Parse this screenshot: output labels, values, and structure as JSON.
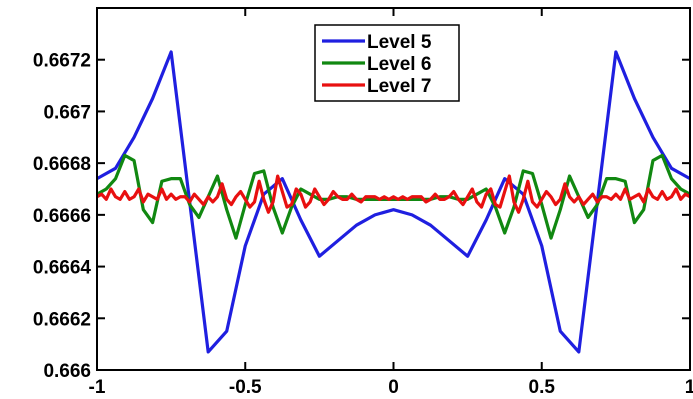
{
  "chart_data": {
    "type": "line",
    "xlim": [
      -1,
      1
    ],
    "ylim": [
      0.666,
      0.6674
    ],
    "x_ticks": [
      -1,
      -0.5,
      0,
      0.5,
      1
    ],
    "x_tick_labels": [
      "-1",
      "-0.5",
      "0",
      "0.5",
      "1"
    ],
    "y_ticks": [
      0.666,
      0.6662,
      0.6664,
      0.6666,
      0.6668,
      0.667,
      0.6672
    ],
    "y_tick_labels": [
      "0.666",
      "0.6662",
      "0.6664",
      "0.6666",
      "0.6668",
      "0.667",
      "0.6672"
    ],
    "grid": false,
    "legend_position": "top-center",
    "title": "",
    "xlabel": "",
    "ylabel": "",
    "series": [
      {
        "name": "Level 5",
        "color": "#1f1fe0",
        "x": [
          -1,
          -0.9375,
          -0.875,
          -0.8125,
          -0.75,
          -0.6875,
          -0.625,
          -0.5625,
          -0.5,
          -0.4375,
          -0.375,
          -0.3125,
          -0.25,
          -0.1875,
          -0.125,
          -0.0625,
          0,
          0.0625,
          0.125,
          0.1875,
          0.25,
          0.3125,
          0.375,
          0.4375,
          0.5,
          0.5625,
          0.625,
          0.6875,
          0.75,
          0.8125,
          0.875,
          0.9375,
          1
        ],
        "y": [
          0.66674,
          0.66678,
          0.6669,
          0.66705,
          0.66723,
          0.66665,
          0.66607,
          0.66615,
          0.66648,
          0.66668,
          0.66674,
          0.66658,
          0.66644,
          0.6665,
          0.66656,
          0.6666,
          0.66662,
          0.6666,
          0.66656,
          0.6665,
          0.66644,
          0.66658,
          0.66674,
          0.66668,
          0.66648,
          0.66615,
          0.66607,
          0.66665,
          0.66723,
          0.66705,
          0.6669,
          0.66678,
          0.66674
        ]
      },
      {
        "name": "Level 6",
        "color": "#118811",
        "x": [
          -1,
          -0.96875,
          -0.9375,
          -0.90625,
          -0.875,
          -0.84375,
          -0.8125,
          -0.78125,
          -0.75,
          -0.71875,
          -0.6875,
          -0.65625,
          -0.625,
          -0.59375,
          -0.5625,
          -0.53125,
          -0.5,
          -0.46875,
          -0.4375,
          -0.40625,
          -0.375,
          -0.34375,
          -0.3125,
          -0.28125,
          -0.25,
          -0.21875,
          -0.1875,
          -0.15625,
          -0.125,
          -0.09375,
          -0.0625,
          -0.03125,
          0,
          0.03125,
          0.0625,
          0.09375,
          0.125,
          0.15625,
          0.1875,
          0.21875,
          0.25,
          0.28125,
          0.3125,
          0.34375,
          0.375,
          0.40625,
          0.4375,
          0.46875,
          0.5,
          0.53125,
          0.5625,
          0.59375,
          0.625,
          0.65625,
          0.6875,
          0.71875,
          0.75,
          0.78125,
          0.8125,
          0.84375,
          0.875,
          0.90625,
          0.9375,
          0.96875,
          1
        ],
        "y": [
          0.66668,
          0.6667,
          0.66674,
          0.66683,
          0.66681,
          0.66662,
          0.66657,
          0.66673,
          0.66674,
          0.66674,
          0.66664,
          0.66659,
          0.66667,
          0.66675,
          0.66662,
          0.66651,
          0.66664,
          0.66676,
          0.66677,
          0.66663,
          0.66653,
          0.66663,
          0.6667,
          0.66668,
          0.66666,
          0.66666,
          0.66667,
          0.66667,
          0.66666,
          0.66666,
          0.66666,
          0.66666,
          0.66666,
          0.66666,
          0.66666,
          0.66666,
          0.66666,
          0.66667,
          0.66667,
          0.66666,
          0.66666,
          0.66668,
          0.6667,
          0.66663,
          0.66653,
          0.66663,
          0.66677,
          0.66676,
          0.66664,
          0.66651,
          0.66662,
          0.66675,
          0.66667,
          0.66659,
          0.66664,
          0.66674,
          0.66674,
          0.66673,
          0.66657,
          0.66662,
          0.66681,
          0.66683,
          0.66674,
          0.6667,
          0.66668
        ]
      },
      {
        "name": "Level 7",
        "color": "#e81010",
        "x": [
          -1,
          -0.984375,
          -0.96875,
          -0.953125,
          -0.9375,
          -0.921875,
          -0.90625,
          -0.890625,
          -0.875,
          -0.859375,
          -0.84375,
          -0.828125,
          -0.8125,
          -0.796875,
          -0.78125,
          -0.765625,
          -0.75,
          -0.734375,
          -0.71875,
          -0.703125,
          -0.6875,
          -0.671875,
          -0.65625,
          -0.640625,
          -0.625,
          -0.609375,
          -0.59375,
          -0.578125,
          -0.5625,
          -0.546875,
          -0.53125,
          -0.515625,
          -0.5,
          -0.484375,
          -0.46875,
          -0.453125,
          -0.4375,
          -0.421875,
          -0.40625,
          -0.390625,
          -0.375,
          -0.359375,
          -0.34375,
          -0.328125,
          -0.3125,
          -0.296875,
          -0.28125,
          -0.265625,
          -0.25,
          -0.234375,
          -0.21875,
          -0.203125,
          -0.1875,
          -0.171875,
          -0.15625,
          -0.140625,
          -0.125,
          -0.109375,
          -0.09375,
          -0.078125,
          -0.0625,
          -0.046875,
          -0.03125,
          -0.015625,
          0,
          0.015625,
          0.03125,
          0.046875,
          0.0625,
          0.078125,
          0.09375,
          0.109375,
          0.125,
          0.140625,
          0.15625,
          0.171875,
          0.1875,
          0.203125,
          0.21875,
          0.234375,
          0.25,
          0.265625,
          0.28125,
          0.296875,
          0.3125,
          0.328125,
          0.34375,
          0.359375,
          0.375,
          0.390625,
          0.40625,
          0.421875,
          0.4375,
          0.453125,
          0.46875,
          0.484375,
          0.5,
          0.515625,
          0.53125,
          0.546875,
          0.5625,
          0.578125,
          0.59375,
          0.609375,
          0.625,
          0.640625,
          0.65625,
          0.671875,
          0.6875,
          0.703125,
          0.71875,
          0.734375,
          0.75,
          0.765625,
          0.78125,
          0.796875,
          0.8125,
          0.828125,
          0.84375,
          0.859375,
          0.875,
          0.890625,
          0.90625,
          0.921875,
          0.9375,
          0.953125,
          0.96875,
          0.984375,
          1
        ],
        "y": [
          0.66667,
          0.66668,
          0.66666,
          0.6667,
          0.66667,
          0.66666,
          0.66669,
          0.66666,
          0.66667,
          0.6667,
          0.66665,
          0.66668,
          0.66667,
          0.66666,
          0.6667,
          0.66666,
          0.66668,
          0.66666,
          0.66667,
          0.66667,
          0.66665,
          0.66668,
          0.66666,
          0.66664,
          0.66667,
          0.66665,
          0.66667,
          0.66672,
          0.66666,
          0.66664,
          0.66667,
          0.66669,
          0.66666,
          0.66663,
          0.66665,
          0.66673,
          0.66666,
          0.66661,
          0.66665,
          0.66675,
          0.66669,
          0.66663,
          0.66664,
          0.6667,
          0.66668,
          0.66663,
          0.66665,
          0.6667,
          0.66667,
          0.66664,
          0.66666,
          0.66669,
          0.66667,
          0.66666,
          0.66666,
          0.66668,
          0.66666,
          0.66665,
          0.66667,
          0.66667,
          0.66667,
          0.66666,
          0.66667,
          0.66666,
          0.66667,
          0.66666,
          0.66667,
          0.66666,
          0.66667,
          0.66667,
          0.66667,
          0.66665,
          0.66666,
          0.66668,
          0.66666,
          0.66666,
          0.66667,
          0.66669,
          0.66666,
          0.66664,
          0.66667,
          0.6667,
          0.66665,
          0.66663,
          0.66668,
          0.6667,
          0.66664,
          0.66663,
          0.66669,
          0.66675,
          0.66665,
          0.66661,
          0.66666,
          0.66673,
          0.66665,
          0.66663,
          0.66666,
          0.66669,
          0.66667,
          0.66664,
          0.66666,
          0.66672,
          0.66667,
          0.66665,
          0.66667,
          0.66664,
          0.66666,
          0.66668,
          0.66665,
          0.66667,
          0.66667,
          0.66666,
          0.66668,
          0.66666,
          0.6667,
          0.66666,
          0.66667,
          0.66668,
          0.66665,
          0.6667,
          0.66667,
          0.66666,
          0.66669,
          0.66666,
          0.66667,
          0.6667,
          0.66666,
          0.66668,
          0.66667
        ]
      }
    ]
  }
}
